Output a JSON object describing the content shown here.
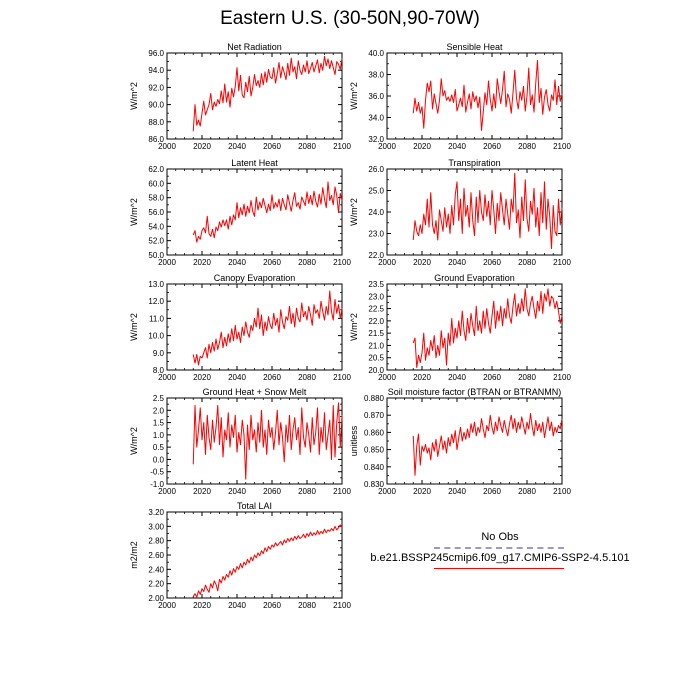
{
  "title": "Eastern U.S. (30-50N,90-70W)",
  "colors": {
    "model": "#ff0000",
    "obs": "#9999cc",
    "axis": "#000000"
  },
  "legend": {
    "obs_label": "No Obs",
    "model_label": "b.e21.BSSP245cmip6.f09_g17.CMIP6-SSP2-4.5.101"
  },
  "chart_data": [
    {
      "type": "line",
      "id": "net-radiation",
      "title": "Net Radiation",
      "ylabel": "W/m^2",
      "xlim": [
        2000,
        2100
      ],
      "xticks": [
        2000,
        2020,
        2040,
        2060,
        2080,
        2100
      ],
      "ylim": [
        86,
        96
      ],
      "yticks": [
        86,
        88,
        90,
        92,
        94,
        96
      ],
      "ydecimals": 1,
      "x_start": 2015,
      "values": [
        86.9,
        90.0,
        87.6,
        88.2,
        87.5,
        89.0,
        90.4,
        88.8,
        89.4,
        90.0,
        91.3,
        89.4,
        90.3,
        89.8,
        90.6,
        90.1,
        91.6,
        90.2,
        92.4,
        90.3,
        91.5,
        89.7,
        91.9,
        90.9,
        92.1,
        94.3,
        91.6,
        93.4,
        91.1,
        90.8,
        92.6,
        91.5,
        93.3,
        91.0,
        92.0,
        93.5,
        92.2,
        92.8,
        92.0,
        93.6,
        92.3,
        93.8,
        92.6,
        94.1,
        93.2,
        93.0,
        94.3,
        92.5,
        93.6,
        94.9,
        93.1,
        94.4,
        93.7,
        92.9,
        94.8,
        93.4,
        95.4,
        93.8,
        94.4,
        93.0,
        95.1,
        94.0,
        93.5,
        94.6,
        93.8,
        95.1,
        93.6,
        94.2,
        94.9,
        93.8,
        94.5,
        95.2,
        93.7,
        94.8,
        94.0,
        95.6,
        94.5,
        95.3,
        94.2,
        95.1,
        94.3,
        93.5,
        95.0,
        94.7,
        94.1,
        95.4
      ]
    },
    {
      "type": "line",
      "id": "sensible-heat",
      "title": "Sensible Heat",
      "ylabel": "W/m^2",
      "xlim": [
        2000,
        2100
      ],
      "xticks": [
        2000,
        2020,
        2040,
        2060,
        2080,
        2100
      ],
      "ylim": [
        32,
        40
      ],
      "yticks": [
        32,
        34,
        36,
        38,
        40
      ],
      "ydecimals": 1,
      "x_start": 2015,
      "values": [
        34.4,
        35.8,
        34.6,
        35.4,
        34.4,
        35.0,
        33.0,
        35.6,
        37.2,
        36.4,
        37.4,
        34.8,
        36.2,
        35.3,
        34.4,
        35.6,
        37.6,
        36.0,
        36.5,
        35.6,
        35.9,
        35.5,
        36.1,
        35.4,
        36.6,
        34.6,
        35.2,
        35.8,
        35.0,
        37.0,
        34.5,
        35.4,
        36.2,
        34.8,
        36.4,
        35.5,
        36.0,
        34.9,
        35.9,
        32.8,
        34.5,
        36.3,
        35.2,
        37.4,
        35.7,
        34.6,
        36.2,
        34.9,
        37.6,
        36.4,
        35.3,
        36.6,
        38.3,
        35.0,
        36.2,
        35.7,
        34.4,
        36.3,
        38.4,
        35.8,
        34.8,
        36.4,
        35.6,
        36.9,
        34.6,
        36.0,
        38.6,
        35.2,
        36.1,
        34.5,
        37.2,
        39.3,
        35.4,
        36.7,
        34.3,
        35.9,
        36.6,
        35.2,
        34.6,
        36.1,
        35.6,
        37.5,
        35.2,
        36.9,
        35.5,
        36.2
      ]
    },
    {
      "type": "line",
      "id": "latent-heat",
      "title": "Latent Heat",
      "ylabel": "W/m^2",
      "xlim": [
        2000,
        2100
      ],
      "xticks": [
        2000,
        2020,
        2040,
        2060,
        2080,
        2100
      ],
      "ylim": [
        50,
        62
      ],
      "yticks": [
        50,
        52,
        54,
        56,
        58,
        60,
        62
      ],
      "ydecimals": 1,
      "x_start": 2015,
      "values": [
        52.8,
        53.4,
        51.8,
        52.6,
        52.2,
        53.4,
        53.8,
        53.1,
        55.4,
        53.0,
        52.6,
        53.6,
        52.4,
        53.9,
        53.4,
        54.6,
        53.9,
        54.9,
        54.1,
        54.9,
        53.6,
        55.4,
        54.2,
        55.6,
        54.9,
        57.3,
        55.2,
        56.6,
        55.6,
        57.1,
        55.4,
        56.8,
        55.9,
        57.6,
        56.1,
        55.4,
        58.1,
        56.3,
        57.4,
        56.6,
        57.9,
        56.9,
        55.9,
        57.1,
        56.2,
        58.4,
        56.5,
        57.3,
        56.7,
        57.8,
        56.2,
        57.9,
        57.0,
        56.3,
        58.4,
        57.2,
        56.1,
        57.6,
        58.7,
        56.8,
        57.3,
        56.4,
        58.1,
        57.5,
        56.9,
        58.8,
        57.2,
        58.3,
        57.0,
        58.9,
        57.5,
        56.7,
        58.5,
        57.1,
        59.4,
        57.8,
        56.6,
        60.2,
        57.6,
        58.3,
        57.0,
        59.5,
        58.3,
        55.9,
        58.6,
        57.6
      ]
    },
    {
      "type": "line",
      "id": "transpiration",
      "title": "Transpiration",
      "ylabel": "W/m^2",
      "xlim": [
        2000,
        2100
      ],
      "xticks": [
        2000,
        2020,
        2040,
        2060,
        2080,
        2100
      ],
      "ylim": [
        22,
        26
      ],
      "yticks": [
        22,
        23,
        24,
        25,
        26
      ],
      "ydecimals": 1,
      "x_start": 2015,
      "values": [
        22.7,
        23.6,
        23.1,
        22.9,
        23.4,
        23.0,
        23.9,
        23.4,
        24.6,
        23.3,
        24.9,
        23.4,
        23.0,
        23.6,
        22.7,
        24.1,
        23.6,
        23.1,
        24.2,
        23.3,
        23.9,
        23.0,
        24.3,
        23.4,
        24.8,
        25.4,
        23.6,
        24.6,
        23.0,
        25.1,
        23.8,
        24.3,
        23.3,
        24.9,
        23.6,
        22.9,
        24.7,
        23.5,
        25.0,
        24.0,
        23.6,
        24.8,
        23.8,
        24.5,
        23.4,
        25.0,
        24.1,
        23.0,
        24.4,
        23.6,
        24.9,
        24.1,
        23.4,
        24.6,
        23.9,
        23.2,
        24.6,
        24.0,
        25.8,
        23.5,
        24.1,
        22.8,
        24.7,
        23.6,
        25.5,
        23.7,
        23.1,
        24.5,
        23.9,
        25.1,
        23.3,
        24.2,
        22.9,
        24.9,
        23.5,
        25.4,
        23.2,
        24.6,
        23.8,
        22.3,
        24.3,
        23.1,
        22.9,
        24.6,
        23.4,
        24.2
      ]
    },
    {
      "type": "line",
      "id": "canopy-evaporation",
      "title": "Canopy Evaporation",
      "ylabel": "W/m^2",
      "xlim": [
        2000,
        2100
      ],
      "xticks": [
        2000,
        2020,
        2040,
        2060,
        2080,
        2100
      ],
      "ylim": [
        8,
        13
      ],
      "yticks": [
        8,
        9,
        10,
        11,
        12,
        13
      ],
      "ydecimals": 1,
      "x_start": 2015,
      "values": [
        8.9,
        8.4,
        8.9,
        8.3,
        8.8,
        8.7,
        9.0,
        9.3,
        8.7,
        9.5,
        9.0,
        9.6,
        9.1,
        9.8,
        9.2,
        9.6,
        10.2,
        9.3,
        9.9,
        9.4,
        10.1,
        9.6,
        10.4,
        9.7,
        10.6,
        9.8,
        10.2,
        9.6,
        10.5,
        10.0,
        10.8,
        10.2,
        9.9,
        10.6,
        10.3,
        11.0,
        10.5,
        11.6,
        10.4,
        11.2,
        10.0,
        10.8,
        10.3,
        11.1,
        10.6,
        10.4,
        11.3,
        10.6,
        11.0,
        10.2,
        11.5,
        10.8,
        10.4,
        11.1,
        10.9,
        11.7,
        10.7,
        11.3,
        10.5,
        11.6,
        11.0,
        10.8,
        11.9,
        11.1,
        11.4,
        10.9,
        11.7,
        11.2,
        10.6,
        11.8,
        11.3,
        11.5,
        11.0,
        12.0,
        11.4,
        10.9,
        11.7,
        11.2,
        12.6,
        11.4,
        10.9,
        12.1,
        11.3,
        11.8,
        11.0,
        11.6
      ]
    },
    {
      "type": "line",
      "id": "ground-evaporation",
      "title": "Ground Evaporation",
      "ylabel": "W/m^2",
      "xlim": [
        2000,
        2100
      ],
      "xticks": [
        2000,
        2020,
        2040,
        2060,
        2080,
        2100
      ],
      "ylim": [
        20,
        23.5
      ],
      "yticks": [
        20.0,
        20.5,
        21.0,
        21.5,
        22.0,
        22.5,
        23.0,
        23.5
      ],
      "ydecimals": 1,
      "x_start": 2015,
      "values": [
        21.1,
        21.3,
        20.1,
        20.6,
        20.3,
        20.7,
        21.5,
        20.4,
        20.9,
        20.6,
        21.2,
        20.8,
        21.4,
        20.5,
        21.0,
        20.6,
        21.6,
        20.9,
        21.3,
        20.2,
        21.5,
        21.0,
        22.1,
        21.1,
        21.7,
        21.3,
        22.0,
        21.4,
        22.4,
        21.6,
        21.2,
        22.1,
        21.5,
        22.3,
        21.8,
        21.4,
        22.6,
        21.6,
        22.0,
        21.5,
        22.4,
        21.7,
        22.5,
        21.9,
        21.5,
        22.2,
        22.8,
        21.7,
        22.4,
        22.0,
        22.6,
        21.8,
        22.5,
        22.1,
        22.9,
        22.2,
        21.9,
        22.6,
        23.1,
        22.2,
        22.7,
        22.3,
        22.9,
        22.4,
        23.3,
        22.5,
        22.2,
        22.7,
        23.0,
        22.5,
        22.1,
        22.8,
        22.4,
        23.2,
        22.3,
        23.1,
        22.8,
        23.3,
        22.6,
        23.0,
        22.9,
        22.5,
        22.8,
        22.4,
        21.9,
        22.2
      ]
    },
    {
      "type": "line",
      "id": "ground-heat-snow-melt",
      "title": "Ground Heat + Snow Melt",
      "ylabel": "W/m^2",
      "xlim": [
        2000,
        2100
      ],
      "xticks": [
        2000,
        2020,
        2040,
        2060,
        2080,
        2100
      ],
      "ylim": [
        -1,
        2.5
      ],
      "yticks": [
        -1.0,
        -0.5,
        0.0,
        0.5,
        1.0,
        1.5,
        2.0,
        2.5
      ],
      "ydecimals": 1,
      "x_start": 2015,
      "values": [
        -0.2,
        2.2,
        0.5,
        1.2,
        2.1,
        0.8,
        1.5,
        0.2,
        1.8,
        0.9,
        0.4,
        1.6,
        0.7,
        1.3,
        2.2,
        0.6,
        1.7,
        0.1,
        1.2,
        0.8,
        1.9,
        0.5,
        1.4,
        0.9,
        1.8,
        0.3,
        1.1,
        0.6,
        1.6,
        1.0,
        -0.8,
        1.4,
        0.4,
        1.8,
        0.8,
        1.2,
        0.3,
        1.5,
        0.7,
        2.0,
        0.5,
        1.2,
        0.2,
        1.6,
        0.9,
        1.3,
        0.4,
        1.1,
        2.0,
        0.6,
        1.5,
        0.9,
        -0.1,
        1.4,
        0.7,
        1.8,
        0.4,
        1.2,
        1.7,
        0.8,
        1.3,
        0.2,
        2.1,
        0.9,
        0.5,
        1.5,
        1.0,
        0.3,
        1.7,
        0.6,
        1.1,
        2.1,
        0.2,
        1.3,
        0.7,
        1.9,
        0.4,
        1.0,
        1.6,
        0.0,
        2.2,
        0.1,
        1.5,
        2.3,
        0.5,
        1.8
      ]
    },
    {
      "type": "line",
      "id": "soil-moisture-factor",
      "title": "Soil moisture factor (BTRAN or BTRANMN)",
      "ylabel": "unitless",
      "xlim": [
        2000,
        2100
      ],
      "xticks": [
        2000,
        2020,
        2040,
        2060,
        2080,
        2100
      ],
      "ylim": [
        0.83,
        0.88
      ],
      "yticks": [
        0.83,
        0.84,
        0.85,
        0.86,
        0.87,
        0.88
      ],
      "ydecimals": 3,
      "x_start": 2015,
      "values": [
        0.858,
        0.835,
        0.852,
        0.859,
        0.841,
        0.852,
        0.849,
        0.853,
        0.848,
        0.851,
        0.844,
        0.854,
        0.849,
        0.856,
        0.846,
        0.852,
        0.858,
        0.85,
        0.855,
        0.848,
        0.857,
        0.852,
        0.859,
        0.854,
        0.861,
        0.85,
        0.857,
        0.863,
        0.855,
        0.86,
        0.856,
        0.862,
        0.857,
        0.865,
        0.86,
        0.866,
        0.858,
        0.863,
        0.86,
        0.868,
        0.862,
        0.857,
        0.864,
        0.861,
        0.87,
        0.863,
        0.859,
        0.866,
        0.861,
        0.869,
        0.864,
        0.86,
        0.867,
        0.862,
        0.858,
        0.865,
        0.87,
        0.862,
        0.868,
        0.86,
        0.866,
        0.862,
        0.869,
        0.864,
        0.859,
        0.866,
        0.862,
        0.871,
        0.863,
        0.858,
        0.867,
        0.861,
        0.865,
        0.86,
        0.866,
        0.857,
        0.863,
        0.869,
        0.861,
        0.866,
        0.858,
        0.863,
        0.86,
        0.864,
        0.862,
        0.868
      ]
    },
    {
      "type": "line",
      "id": "total-lai",
      "title": "Total LAI",
      "ylabel": "m2/m2",
      "xlim": [
        2000,
        2100
      ],
      "xticks": [
        2000,
        2020,
        2040,
        2060,
        2080,
        2100
      ],
      "ylim": [
        2,
        3.2
      ],
      "yticks": [
        2.0,
        2.2,
        2.4,
        2.6,
        2.8,
        3.0,
        3.2
      ],
      "ydecimals": 2,
      "x_start": 2015,
      "values": [
        2.02,
        2.06,
        2.01,
        2.1,
        2.05,
        2.13,
        2.09,
        2.18,
        2.12,
        2.08,
        2.2,
        2.14,
        2.24,
        2.19,
        2.1,
        2.26,
        2.21,
        2.3,
        2.25,
        2.33,
        2.29,
        2.38,
        2.32,
        2.41,
        2.36,
        2.44,
        2.4,
        2.48,
        2.42,
        2.5,
        2.46,
        2.54,
        2.49,
        2.57,
        2.52,
        2.6,
        2.56,
        2.63,
        2.59,
        2.66,
        2.62,
        2.7,
        2.65,
        2.72,
        2.68,
        2.74,
        2.71,
        2.77,
        2.73,
        2.76,
        2.79,
        2.74,
        2.81,
        2.77,
        2.83,
        2.79,
        2.84,
        2.8,
        2.86,
        2.82,
        2.87,
        2.83,
        2.85,
        2.89,
        2.84,
        2.9,
        2.86,
        2.92,
        2.87,
        2.91,
        2.88,
        2.94,
        2.89,
        2.93,
        2.9,
        2.96,
        2.91,
        2.95,
        2.93,
        2.97,
        2.94,
        3.0,
        2.95,
        2.98,
        3.02,
        2.99
      ]
    }
  ]
}
